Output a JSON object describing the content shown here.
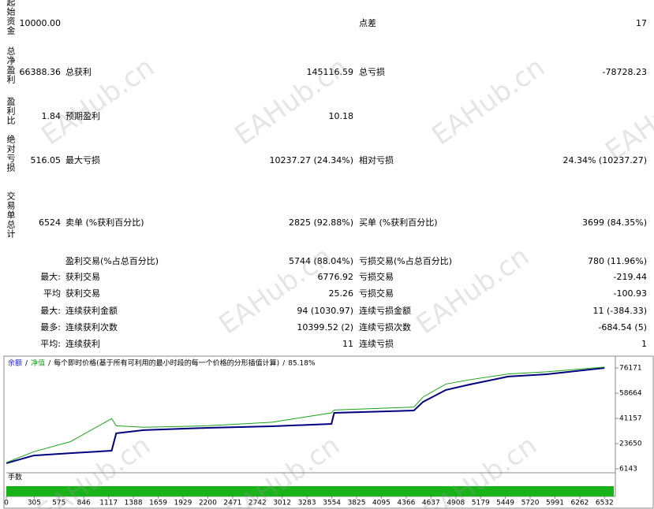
{
  "report": {
    "rows": [
      {
        "label": "起始资金",
        "value": "10000.00",
        "right_label": "点差",
        "right_value": "17"
      },
      {
        "label": "总净盈利",
        "value": "66388.36",
        "mid_label": "总获利",
        "mid_value": "145116.59",
        "right_label": "总亏损",
        "right_value": "-78728.23"
      },
      {
        "label": "盈利比",
        "value": "1.84",
        "mid_label": "预期盈利",
        "mid_value": "10.18"
      },
      {
        "label": "绝对亏损",
        "value": "516.05",
        "mid_label": "最大亏损",
        "mid_value": "10237.27 (24.34%)",
        "right_label": "相对亏损",
        "right_value": "24.34% (10237.27)"
      },
      {
        "label": "交易单总计",
        "value": "6524",
        "mid_label": "卖单 (%获利百分比)",
        "mid_value": "2825 (92.88%)",
        "right_label": "买单 (%获利百分比)",
        "right_value": "3699 (84.35%)"
      },
      {
        "mid_label": "盈利交易(%占总百分比)",
        "mid_value": "5744 (88.04%)",
        "right_label": "亏损交易(%占总百分比)",
        "right_value": "780 (11.96%)"
      },
      {
        "prefix": "最大:",
        "mid_label": "获利交易",
        "mid_value": "6776.92",
        "right_label": "亏损交易",
        "right_value": "-219.44"
      },
      {
        "prefix": "平均",
        "mid_label": "获利交易",
        "mid_value": "25.26",
        "right_label": "亏损交易",
        "right_value": "-100.93"
      },
      {
        "prefix": "最大:",
        "mid_label": "连续获利金额",
        "mid_value": "94 (1030.97)",
        "right_label": "连续亏损金额",
        "right_value": "11 (-384.33)"
      },
      {
        "prefix": "最多:",
        "mid_label": "连续获利次数",
        "mid_value": "10399.52 (2)",
        "right_label": "连续亏损次数",
        "right_value": "-684.54 (5)"
      },
      {
        "prefix": "平均:",
        "mid_label": "连续获利",
        "mid_value": "11",
        "right_label": "连续亏损",
        "right_value": "1"
      }
    ]
  },
  "watermark": "EAHub.cn",
  "chart_data": {
    "type": "line",
    "legend_separator": "/",
    "legend_note": "每个即时价格(基于所有可利用的最小时段的每一个价格的分形插值计算)",
    "legend_quality": "85.18%",
    "volume_label": "手数",
    "x": [
      0,
      300,
      700,
      1150,
      1200,
      1500,
      2200,
      2900,
      3550,
      3580,
      4450,
      4550,
      4800,
      5060,
      5480,
      5900,
      6532
    ],
    "series": [
      {
        "name": "余额",
        "color": "#00007f",
        "values": [
          10000,
          15400,
          17000,
          18700,
          30800,
          33000,
          34600,
          35700,
          37300,
          45000,
          46600,
          52600,
          60900,
          64700,
          70200,
          71800,
          76171
        ]
      },
      {
        "name": "净值",
        "color": "#19a319",
        "values": [
          10500,
          18000,
          25000,
          41000,
          36000,
          35000,
          36000,
          38500,
          45000,
          47000,
          49000,
          56000,
          65000,
          68000,
          72000,
          73500,
          76800
        ]
      }
    ],
    "xlim": [
      0,
      6650
    ],
    "xticks": [
      0,
      305,
      575,
      846,
      1117,
      1388,
      1659,
      1929,
      2200,
      2471,
      2742,
      3012,
      3283,
      3554,
      3825,
      4095,
      4366,
      4637,
      4908,
      5179,
      5449,
      5720,
      5991,
      6262,
      6532
    ],
    "ylim": [
      6143,
      76171
    ],
    "yticks": [
      6143,
      23650,
      41157,
      58664,
      76171
    ]
  }
}
